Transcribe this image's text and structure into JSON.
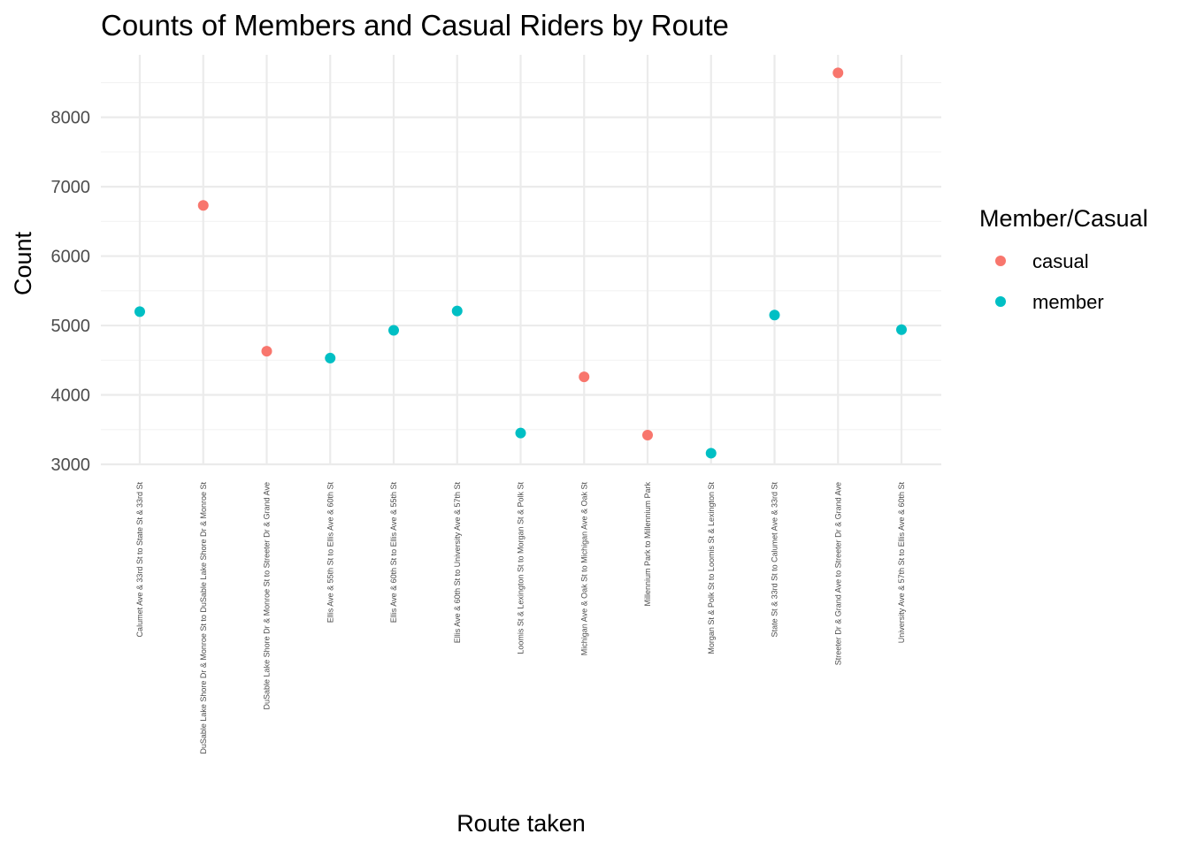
{
  "chart_data": {
    "type": "scatter",
    "title": "Counts of Members and Casual Riders by Route",
    "xlabel": "Route taken",
    "ylabel": "Count",
    "ylim": [
      3000,
      8900
    ],
    "y_ticks": [
      3000,
      4000,
      5000,
      6000,
      7000,
      8000
    ],
    "y_tick_labels": [
      "3000",
      "4000",
      "5000",
      "6000",
      "7000",
      "8000"
    ],
    "grid": true,
    "legend": {
      "title": "Member/Casual",
      "position": "right"
    },
    "categories": [
      "Calumet Ave & 33rd St to State St & 33rd St",
      "DuSable Lake Shore Dr & Monroe St to DuSable Lake Shore Dr & Monroe St",
      "DuSable Lake Shore Dr & Monroe St to Streeter Dr & Grand Ave",
      "Ellis Ave & 55th St to Ellis Ave & 60th St",
      "Ellis Ave & 60th St to Ellis Ave & 55th St",
      "Ellis Ave & 60th St to University Ave & 57th St",
      "Loomis St & Lexington St to Morgan St & Polk St",
      "Michigan Ave & Oak St to Michigan Ave & Oak St",
      "Millennium Park to Millennium Park",
      "Morgan St & Polk St to Loomis St & Lexington St",
      "State St & 33rd St to Calumet Ave & 33rd St",
      "Streeter Dr & Grand Ave to Streeter Dr & Grand Ave",
      "University Ave & 57th St to Ellis Ave & 60th St"
    ],
    "series": [
      {
        "name": "casual",
        "color": "#F8766D",
        "points": [
          {
            "x": "DuSable Lake Shore Dr & Monroe St to DuSable Lake Shore Dr & Monroe St",
            "y": 6730
          },
          {
            "x": "DuSable Lake Shore Dr & Monroe St to Streeter Dr & Grand Ave",
            "y": 4630
          },
          {
            "x": "Michigan Ave & Oak St to Michigan Ave & Oak St",
            "y": 4260
          },
          {
            "x": "Millennium Park to Millennium Park",
            "y": 3420
          },
          {
            "x": "Streeter Dr & Grand Ave to Streeter Dr & Grand Ave",
            "y": 8640
          }
        ]
      },
      {
        "name": "member",
        "color": "#00BFC4",
        "points": [
          {
            "x": "Calumet Ave & 33rd St to State St & 33rd St",
            "y": 5200
          },
          {
            "x": "Ellis Ave & 55th St to Ellis Ave & 60th St",
            "y": 4530
          },
          {
            "x": "Ellis Ave & 60th St to Ellis Ave & 55th St",
            "y": 4930
          },
          {
            "x": "Ellis Ave & 60th St to University Ave & 57th St",
            "y": 5210
          },
          {
            "x": "Loomis St & Lexington St to Morgan St & Polk St",
            "y": 3450
          },
          {
            "x": "Morgan St & Polk St to Loomis St & Lexington St",
            "y": 3160
          },
          {
            "x": "State St & 33rd St to Calumet Ave & 33rd St",
            "y": 5150
          },
          {
            "x": "University Ave & 57th St to Ellis Ave & 60th St",
            "y": 4940
          }
        ]
      }
    ]
  }
}
